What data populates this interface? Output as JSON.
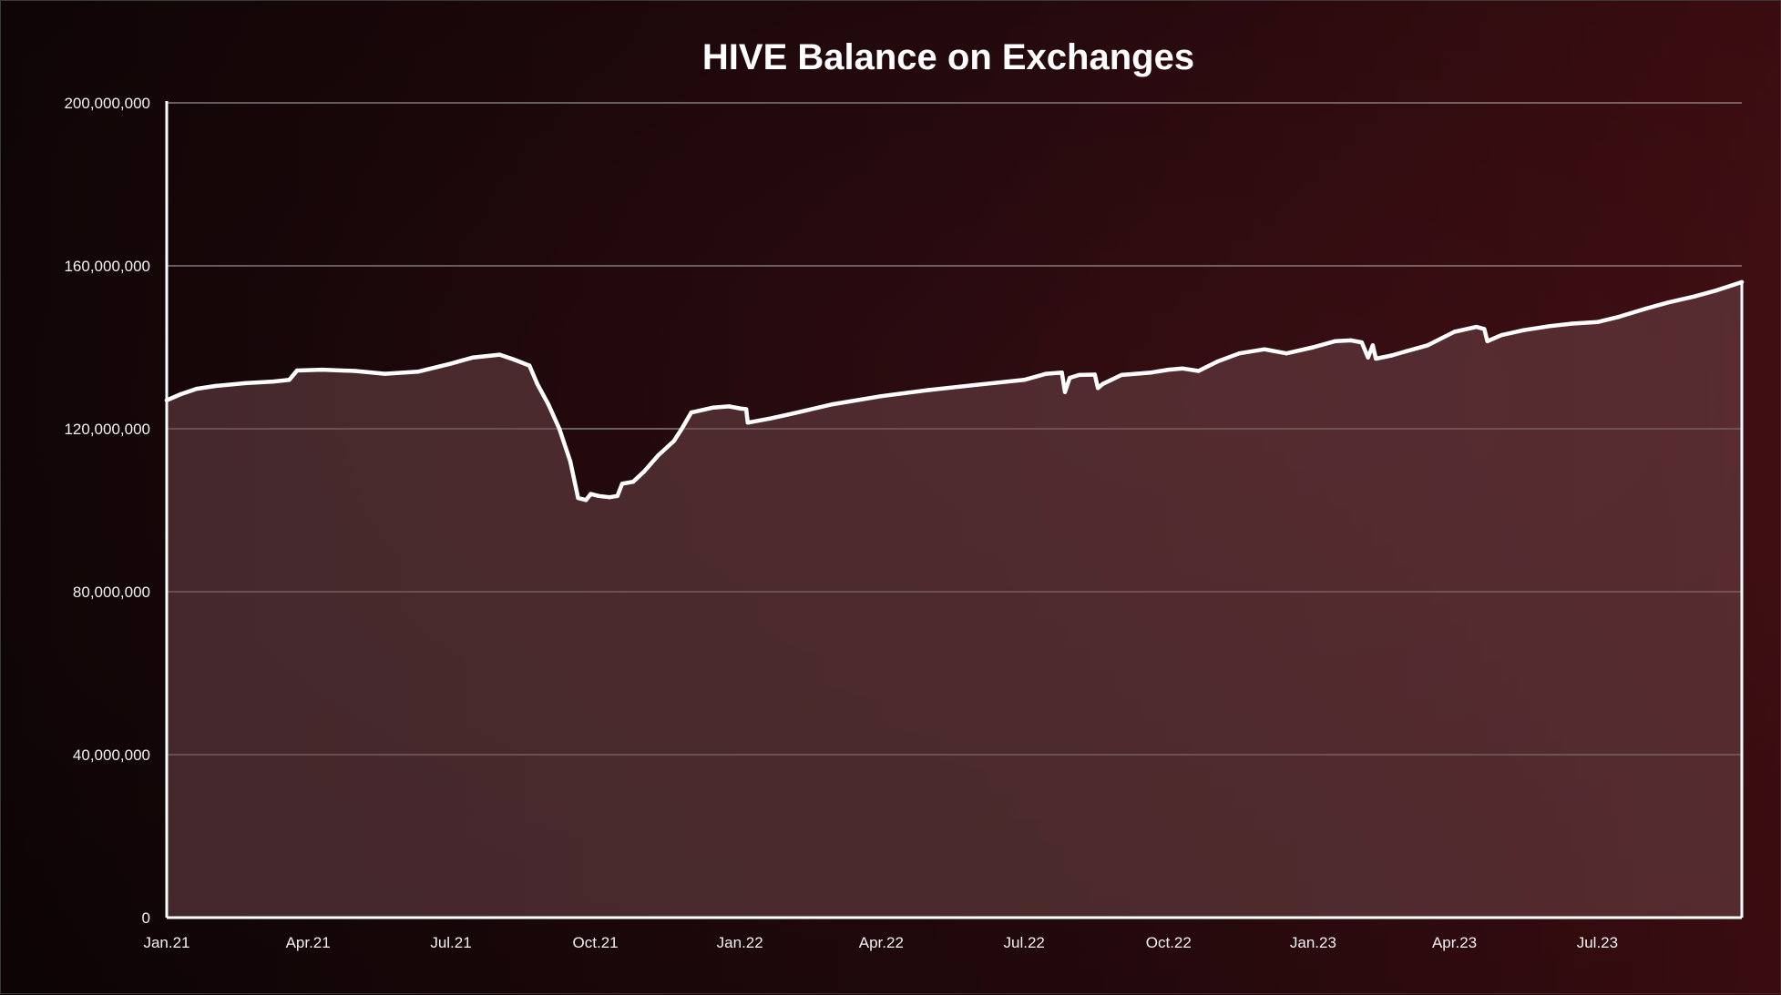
{
  "chart_data": {
    "type": "area",
    "title": "HIVE Balance on Exchanges",
    "xlabel": "",
    "ylabel": "",
    "ylim": [
      0,
      200000000
    ],
    "y_ticks": [
      0,
      40000000,
      80000000,
      120000000,
      160000000,
      200000000
    ],
    "y_tick_labels": [
      "0",
      "40,000,000",
      "80,000,000",
      "120,000,000",
      "160,000,000",
      "200,000,000"
    ],
    "x_range": [
      "2021-01-01",
      "2023-10-01"
    ],
    "x_ticks": [
      "2021-01-01",
      "2021-04-01",
      "2021-07-01",
      "2021-10-01",
      "2022-01-01",
      "2022-04-01",
      "2022-07-01",
      "2022-10-01",
      "2023-01-01",
      "2023-04-01",
      "2023-07-01"
    ],
    "x_tick_labels": [
      "Jan.21",
      "Apr.21",
      "Jul.21",
      "Oct.21",
      "Jan.22",
      "Apr.22",
      "Jul.22",
      "Oct.22",
      "Jan.23",
      "Apr.23",
      "Jul.23"
    ],
    "grid": "horizontal",
    "legend": "none",
    "colors": {
      "line": "#ffffff",
      "fill": "#6e4548",
      "grid": "#bfbfbf"
    },
    "series": [
      {
        "x": [
          "2021-01-01",
          "2021-01-10",
          "2021-01-20",
          "2021-02-01",
          "2021-02-20",
          "2021-03-10",
          "2021-03-20",
          "2021-03-25",
          "2021-04-10",
          "2021-05-01",
          "2021-05-20",
          "2021-06-10",
          "2021-07-01",
          "2021-07-15",
          "2021-08-01",
          "2021-08-10",
          "2021-08-20",
          "2021-08-25",
          "2021-09-01",
          "2021-09-08",
          "2021-09-15",
          "2021-09-20",
          "2021-09-25",
          "2021-09-28",
          "2021-10-03",
          "2021-10-10",
          "2021-10-15",
          "2021-10-18",
          "2021-10-25",
          "2021-11-01",
          "2021-11-10",
          "2021-11-20",
          "2021-11-25",
          "2021-12-01",
          "2021-12-15",
          "2021-12-25",
          "2022-01-01",
          "2022-01-05",
          "2022-01-06",
          "2022-01-20",
          "2022-02-01",
          "2022-03-01",
          "2022-04-01",
          "2022-05-01",
          "2022-06-01",
          "2022-07-01",
          "2022-07-15",
          "2022-07-25",
          "2022-07-27",
          "2022-07-30",
          "2022-08-05",
          "2022-08-15",
          "2022-08-17",
          "2022-08-20",
          "2022-09-01",
          "2022-09-20",
          "2022-10-01",
          "2022-10-10",
          "2022-10-20",
          "2022-11-01",
          "2022-11-15",
          "2022-12-01",
          "2022-12-15",
          "2023-01-01",
          "2023-01-15",
          "2023-01-25",
          "2023-02-01",
          "2023-02-05",
          "2023-02-08",
          "2023-02-10",
          "2023-02-20",
          "2023-03-01",
          "2023-03-15",
          "2023-04-01",
          "2023-04-15",
          "2023-04-20",
          "2023-04-22",
          "2023-05-01",
          "2023-05-15",
          "2023-06-01",
          "2023-06-15",
          "2023-07-01",
          "2023-07-15",
          "2023-08-01",
          "2023-08-15",
          "2023-09-01",
          "2023-09-15",
          "2023-10-01"
        ],
        "values": [
          127000000,
          128500000,
          129800000,
          130500000,
          131200000,
          131600000,
          132000000,
          134300000,
          134500000,
          134200000,
          133500000,
          134000000,
          136000000,
          137500000,
          138200000,
          137000000,
          135500000,
          131000000,
          126000000,
          120000000,
          112000000,
          103000000,
          102500000,
          104000000,
          103500000,
          103200000,
          103500000,
          106500000,
          107000000,
          109500000,
          113500000,
          117000000,
          120000000,
          124000000,
          125200000,
          125500000,
          125000000,
          124800000,
          121500000,
          122500000,
          123500000,
          126000000,
          128000000,
          129500000,
          130800000,
          132000000,
          133500000,
          133800000,
          129000000,
          132500000,
          133200000,
          133300000,
          130000000,
          131000000,
          133200000,
          133800000,
          134500000,
          134800000,
          134200000,
          136500000,
          138500000,
          139500000,
          138500000,
          140000000,
          141500000,
          141700000,
          141200000,
          137500000,
          140500000,
          137200000,
          138000000,
          139000000,
          140500000,
          143800000,
          145000000,
          144500000,
          141500000,
          143000000,
          144200000,
          145200000,
          145800000,
          146200000,
          147500000,
          149500000,
          151000000,
          152500000,
          154000000,
          156000000
        ]
      }
    ]
  }
}
